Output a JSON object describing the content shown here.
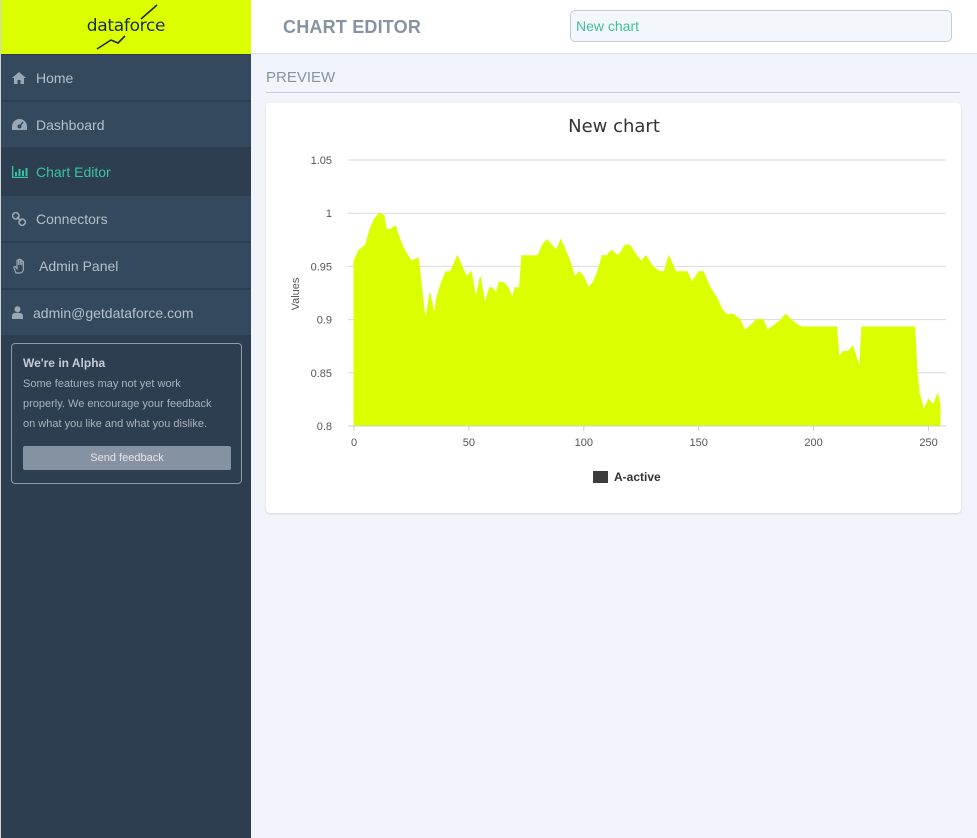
{
  "brand": {
    "name": "dataforce",
    "color": "#dcff00"
  },
  "sidebar": {
    "items": [
      {
        "label": "Home",
        "icon": "home-icon",
        "active": false
      },
      {
        "label": "Dashboard",
        "icon": "dashboard-icon",
        "active": false
      },
      {
        "label": "Chart Editor",
        "icon": "bar-chart-icon",
        "active": true
      },
      {
        "label": "Connectors",
        "icon": "link-icon",
        "active": false
      },
      {
        "label": "Admin Panel",
        "icon": "hand-icon",
        "active": false
      },
      {
        "label": "admin@getdataforce.com",
        "icon": "user-icon",
        "active": false
      }
    ],
    "alpha": {
      "title": "We're in Alpha",
      "line1": "Some features may not yet work",
      "line2": "properly. We encourage your feedback",
      "line3": "on what you like and what you dislike.",
      "button": "Send feedback"
    }
  },
  "header": {
    "title": "CHART EDITOR",
    "chart_name_value": "New chart"
  },
  "preview": {
    "label": "PREVIEW"
  },
  "chart_data": {
    "type": "area",
    "title": "New chart",
    "xlabel": "",
    "ylabel": "Values",
    "xlim": [
      0,
      255
    ],
    "ylim": [
      0.8,
      1.05
    ],
    "xticks": [
      0,
      50,
      100,
      150,
      200,
      250
    ],
    "yticks": [
      0.8,
      0.85,
      0.9,
      0.95,
      1,
      1.05
    ],
    "grid": true,
    "legend": "bottom-center",
    "fill_color": "#dcff00",
    "series": [
      {
        "name": "A-active",
        "x": [
          0,
          2,
          5,
          7,
          9,
          11,
          13,
          14,
          16,
          18,
          20,
          22,
          25,
          28,
          31,
          32,
          33,
          35,
          36,
          38,
          40,
          42,
          45,
          46,
          48,
          49,
          51,
          53,
          55,
          57,
          59,
          60,
          62,
          63,
          65,
          67,
          69,
          70,
          72,
          73,
          80,
          82,
          84,
          86,
          88,
          90,
          92,
          94,
          96,
          98,
          100,
          102,
          104,
          106,
          108,
          110,
          112,
          115,
          118,
          120,
          123,
          125,
          127,
          130,
          133,
          135,
          137,
          140,
          143,
          145,
          147,
          150,
          152,
          155,
          158,
          160,
          162,
          165,
          168,
          170,
          173,
          175,
          178,
          180,
          183,
          186,
          188,
          190,
          193,
          195,
          200,
          205,
          210,
          211,
          213,
          215,
          217,
          220,
          221,
          230,
          240,
          244,
          245,
          246,
          248,
          250,
          252,
          254,
          255
        ],
        "y": [
          0.955,
          0.965,
          0.97,
          0.985,
          0.995,
          1.0,
          0.998,
          0.985,
          0.985,
          0.988,
          0.975,
          0.965,
          0.955,
          0.958,
          0.9,
          0.91,
          0.925,
          0.905,
          0.92,
          0.935,
          0.945,
          0.945,
          0.96,
          0.955,
          0.945,
          0.94,
          0.945,
          0.92,
          0.94,
          0.915,
          0.93,
          0.93,
          0.925,
          0.935,
          0.935,
          0.93,
          0.92,
          0.93,
          0.93,
          0.96,
          0.96,
          0.97,
          0.975,
          0.97,
          0.965,
          0.975,
          0.965,
          0.955,
          0.94,
          0.945,
          0.94,
          0.93,
          0.935,
          0.945,
          0.96,
          0.96,
          0.965,
          0.96,
          0.97,
          0.97,
          0.96,
          0.955,
          0.96,
          0.95,
          0.945,
          0.945,
          0.96,
          0.945,
          0.945,
          0.945,
          0.935,
          0.945,
          0.945,
          0.93,
          0.92,
          0.91,
          0.905,
          0.905,
          0.9,
          0.89,
          0.895,
          0.9,
          0.9,
          0.89,
          0.895,
          0.9,
          0.905,
          0.9,
          0.895,
          0.893,
          0.893,
          0.893,
          0.893,
          0.865,
          0.87,
          0.87,
          0.875,
          0.855,
          0.893,
          0.893,
          0.893,
          0.893,
          0.85,
          0.83,
          0.815,
          0.825,
          0.82,
          0.83,
          0.82
        ]
      }
    ]
  }
}
